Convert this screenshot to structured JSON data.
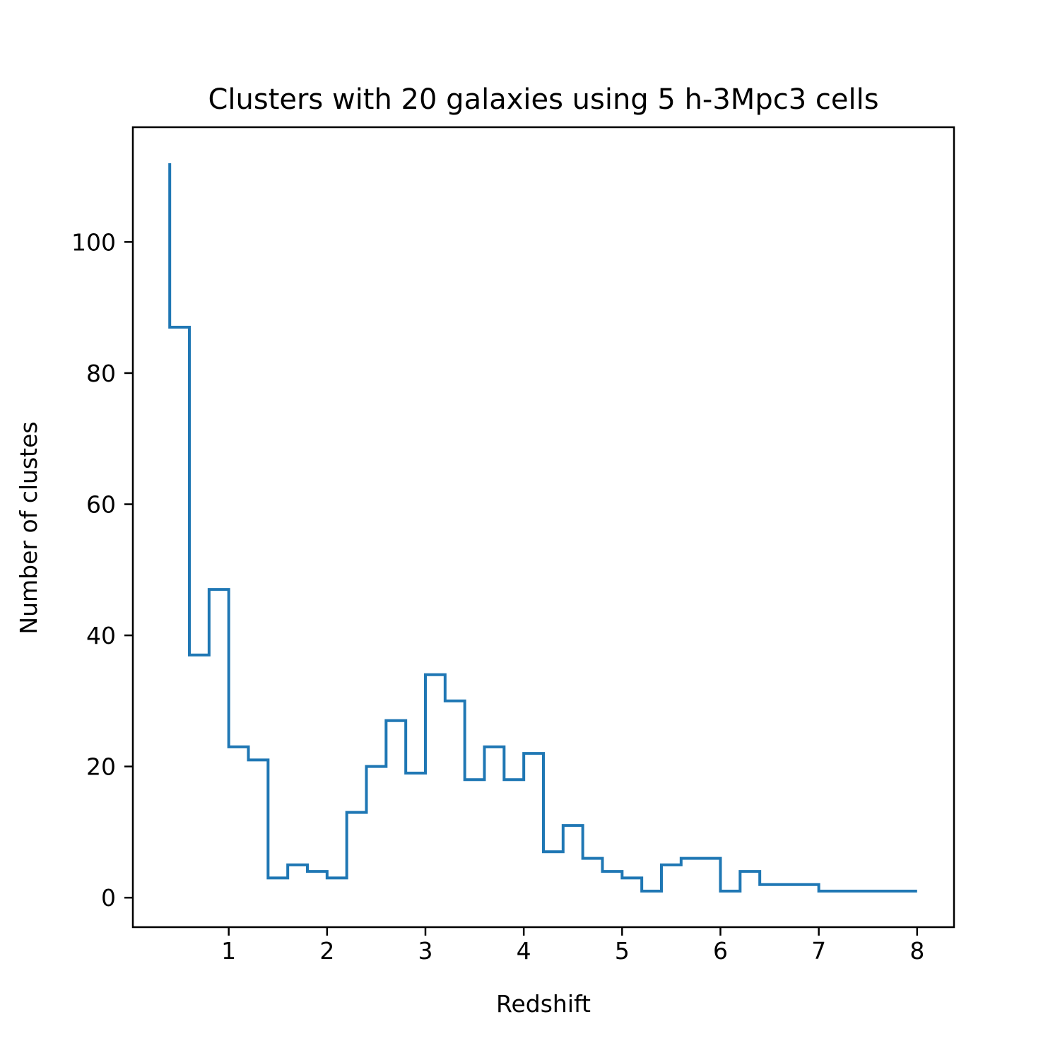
{
  "chart_data": {
    "type": "line",
    "drawstyle": "steps-post",
    "title": "Clusters with 20 galaxies using 5 h-3Mpc3 cells",
    "xlabel": "Redshift",
    "ylabel": "Number of clustes",
    "xlim": [
      0.025,
      8.375
    ],
    "ylim": [
      -4.5,
      117.5
    ],
    "xticks": [
      1,
      2,
      3,
      4,
      5,
      6,
      7,
      8
    ],
    "yticks": [
      0,
      20,
      40,
      60,
      80,
      100
    ],
    "grid": false,
    "legend": "none",
    "series": [
      {
        "color": "#1f77b4",
        "x": [
          0.4,
          0.4,
          0.6,
          0.8,
          1.0,
          1.2,
          1.4,
          1.6,
          1.8,
          2.0,
          2.2,
          2.4,
          2.6,
          2.8,
          3.0,
          3.2,
          3.4,
          3.6,
          3.8,
          4.0,
          4.2,
          4.4,
          4.6,
          4.8,
          5.0,
          5.2,
          5.4,
          5.6,
          5.8,
          6.0,
          6.2,
          6.4,
          6.6,
          6.8,
          7.0,
          7.2,
          7.4,
          7.6,
          7.8,
          8.0
        ],
        "y": [
          112,
          87,
          37,
          47,
          23,
          21,
          3,
          5,
          4,
          3,
          13,
          20,
          27,
          19,
          34,
          30,
          18,
          23,
          18,
          22,
          7,
          11,
          6,
          4,
          3,
          1,
          5,
          6,
          6,
          1,
          4,
          2,
          2,
          2,
          1,
          1,
          1,
          1,
          1,
          1
        ]
      }
    ]
  }
}
